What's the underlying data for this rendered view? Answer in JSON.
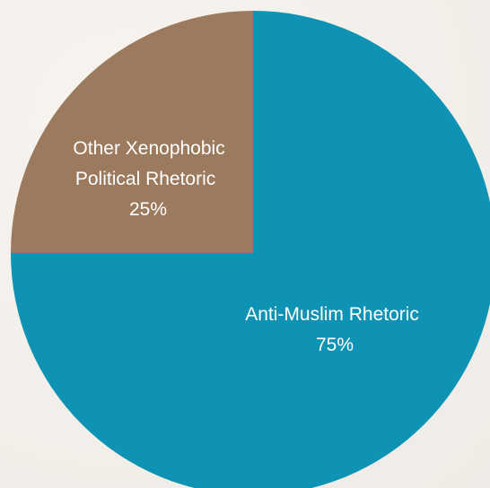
{
  "chart_data": {
    "type": "pie",
    "start_angle_deg": 0,
    "direction": "clockwise",
    "slices": [
      {
        "name": "Anti-Muslim Rhetoric",
        "value": 75,
        "label_lines": [
          "Anti-Muslim Rhetoric",
          "75%"
        ],
        "color": "#0e93b4"
      },
      {
        "name": "Other Xenophobic Political Rhetoric",
        "value": 25,
        "label_lines": [
          "Other Xenophobic",
          "Political Rhetoric",
          "25%"
        ],
        "color": "#9c7a5d"
      }
    ]
  }
}
